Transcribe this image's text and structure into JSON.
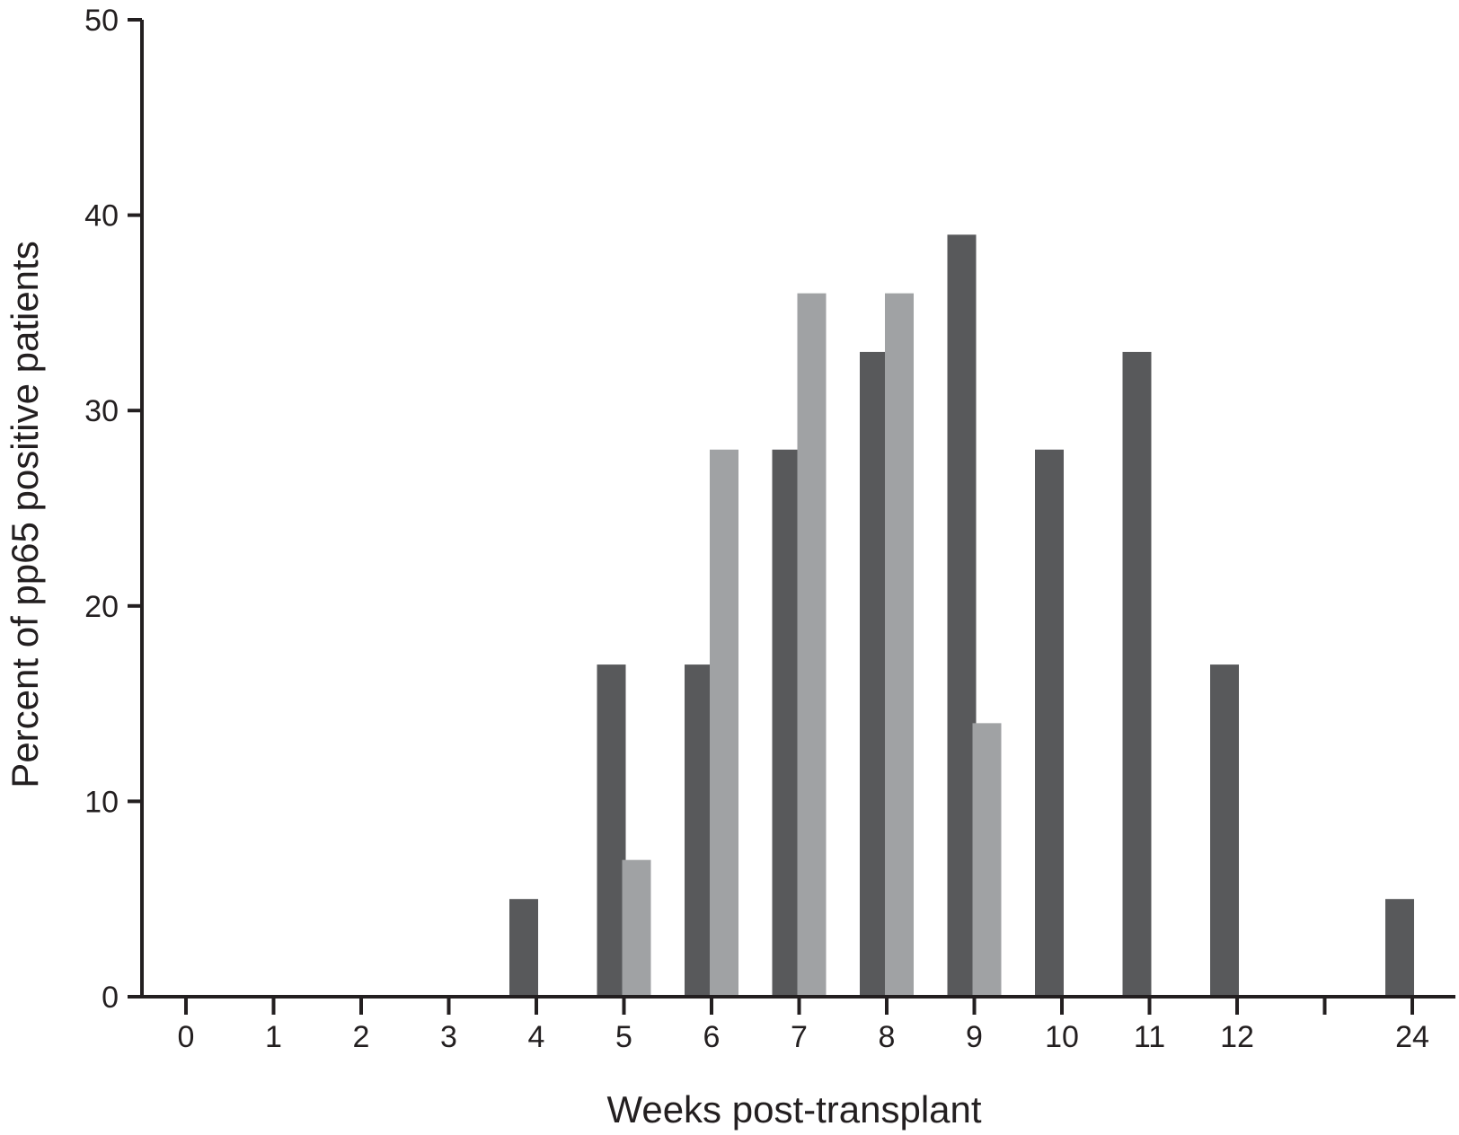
{
  "chart_data": {
    "type": "bar",
    "title": "",
    "xlabel": "Weeks post-transplant",
    "ylabel": "Percent of pp65 positive patients",
    "ylim": [
      0,
      50
    ],
    "yticks": [
      0,
      10,
      20,
      30,
      40,
      50
    ],
    "categories": [
      "0",
      "1",
      "2",
      "3",
      "4",
      "5",
      "6",
      "7",
      "8",
      "9",
      "10",
      "11",
      "12",
      "24"
    ],
    "series": [
      {
        "color": "#58595b",
        "values": [
          0,
          0,
          0,
          0,
          5,
          17,
          17,
          28,
          33,
          39,
          28,
          33,
          17,
          5
        ]
      },
      {
        "color": "#a0a2a4",
        "values": [
          0,
          0,
          0,
          0,
          0,
          7,
          28,
          36,
          36,
          14,
          0,
          0,
          0,
          0
        ]
      }
    ],
    "grid": false,
    "legend": "none"
  }
}
